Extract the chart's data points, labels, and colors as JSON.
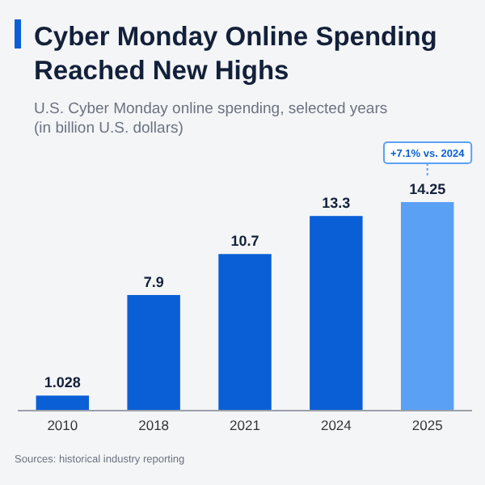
{
  "chart_data": {
    "type": "bar",
    "title": "Cyber Monday Online Spending\nReached New Highs",
    "subtitle": "U.S. Cyber Monday online spending, selected years\n(in billion U.S. dollars)",
    "categories": [
      "2010",
      "2018",
      "2021",
      "2024",
      "2025"
    ],
    "values": [
      1.028,
      7.9,
      10.7,
      13.3,
      14.25
    ],
    "colors": [
      "#0a5fd6",
      "#0a5fd6",
      "#0a5fd6",
      "#0a5fd6",
      "#5aa0f5"
    ],
    "data_labels": true,
    "annotations": [
      "+7.1% vs. 2024",
      "Sources: historical industry reporting"
    ]
  }
}
